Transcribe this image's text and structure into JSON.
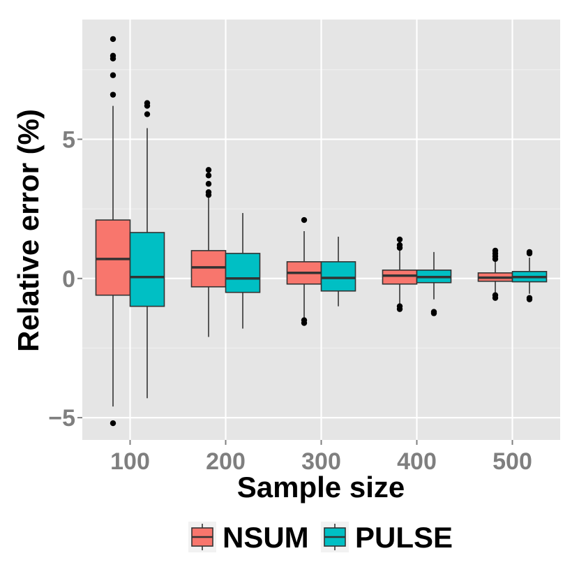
{
  "chart_data": {
    "type": "boxplot",
    "xlabel": "Sample size",
    "ylabel": "Relative error (%)",
    "categories": [
      "100",
      "200",
      "300",
      "400",
      "500"
    ],
    "ylim": [
      -5.8,
      9.3
    ],
    "y_ticks": [
      -5,
      0,
      5
    ],
    "y_tick_labels": [
      "−5",
      "0",
      "5"
    ],
    "grid": true,
    "legend_position": "bottom",
    "series": [
      {
        "name": "NSUM",
        "color": "#F8766D",
        "boxes": [
          {
            "q1": -0.6,
            "median": 0.7,
            "q3": 2.1,
            "whisker_low": -4.6,
            "whisker_high": 6.2,
            "outliers": [
              8.6,
              8.0,
              7.9,
              7.3,
              6.6,
              -5.2
            ]
          },
          {
            "q1": -0.3,
            "median": 0.4,
            "q3": 1.0,
            "whisker_low": -2.1,
            "whisker_high": 2.9,
            "outliers": [
              3.9,
              3.7,
              3.4,
              3.1,
              3.0
            ]
          },
          {
            "q1": -0.2,
            "median": 0.2,
            "q3": 0.6,
            "whisker_low": -1.4,
            "whisker_high": 1.7,
            "outliers": [
              2.1,
              -1.5,
              -1.6
            ]
          },
          {
            "q1": -0.2,
            "median": 0.1,
            "q3": 0.3,
            "whisker_low": -0.9,
            "whisker_high": 1.0,
            "outliers": [
              1.4,
              1.2,
              1.1,
              -1.0,
              -1.1
            ]
          },
          {
            "q1": -0.1,
            "median": 0.03,
            "q3": 0.2,
            "whisker_low": -0.5,
            "whisker_high": 0.6,
            "outliers": [
              1.0,
              0.9,
              0.8,
              0.7,
              -0.6,
              -0.7
            ]
          }
        ]
      },
      {
        "name": "PULSE",
        "color": "#00BFC4",
        "boxes": [
          {
            "q1": -1.0,
            "median": 0.05,
            "q3": 1.65,
            "whisker_low": -4.3,
            "whisker_high": 5.4,
            "outliers": [
              6.3,
              6.2,
              5.9
            ]
          },
          {
            "q1": -0.5,
            "median": 0.0,
            "q3": 0.9,
            "whisker_low": -1.8,
            "whisker_high": 2.35,
            "outliers": []
          },
          {
            "q1": -0.45,
            "median": 0.02,
            "q3": 0.6,
            "whisker_low": -1.0,
            "whisker_high": 1.5,
            "outliers": []
          },
          {
            "q1": -0.15,
            "median": 0.05,
            "q3": 0.3,
            "whisker_low": -0.75,
            "whisker_high": 0.95,
            "outliers": [
              -1.2,
              -1.25
            ]
          },
          {
            "q1": -0.12,
            "median": 0.05,
            "q3": 0.25,
            "whisker_low": -0.55,
            "whisker_high": 0.75,
            "outliers": [
              0.95,
              0.9,
              -0.7,
              -0.75
            ]
          }
        ]
      }
    ]
  }
}
